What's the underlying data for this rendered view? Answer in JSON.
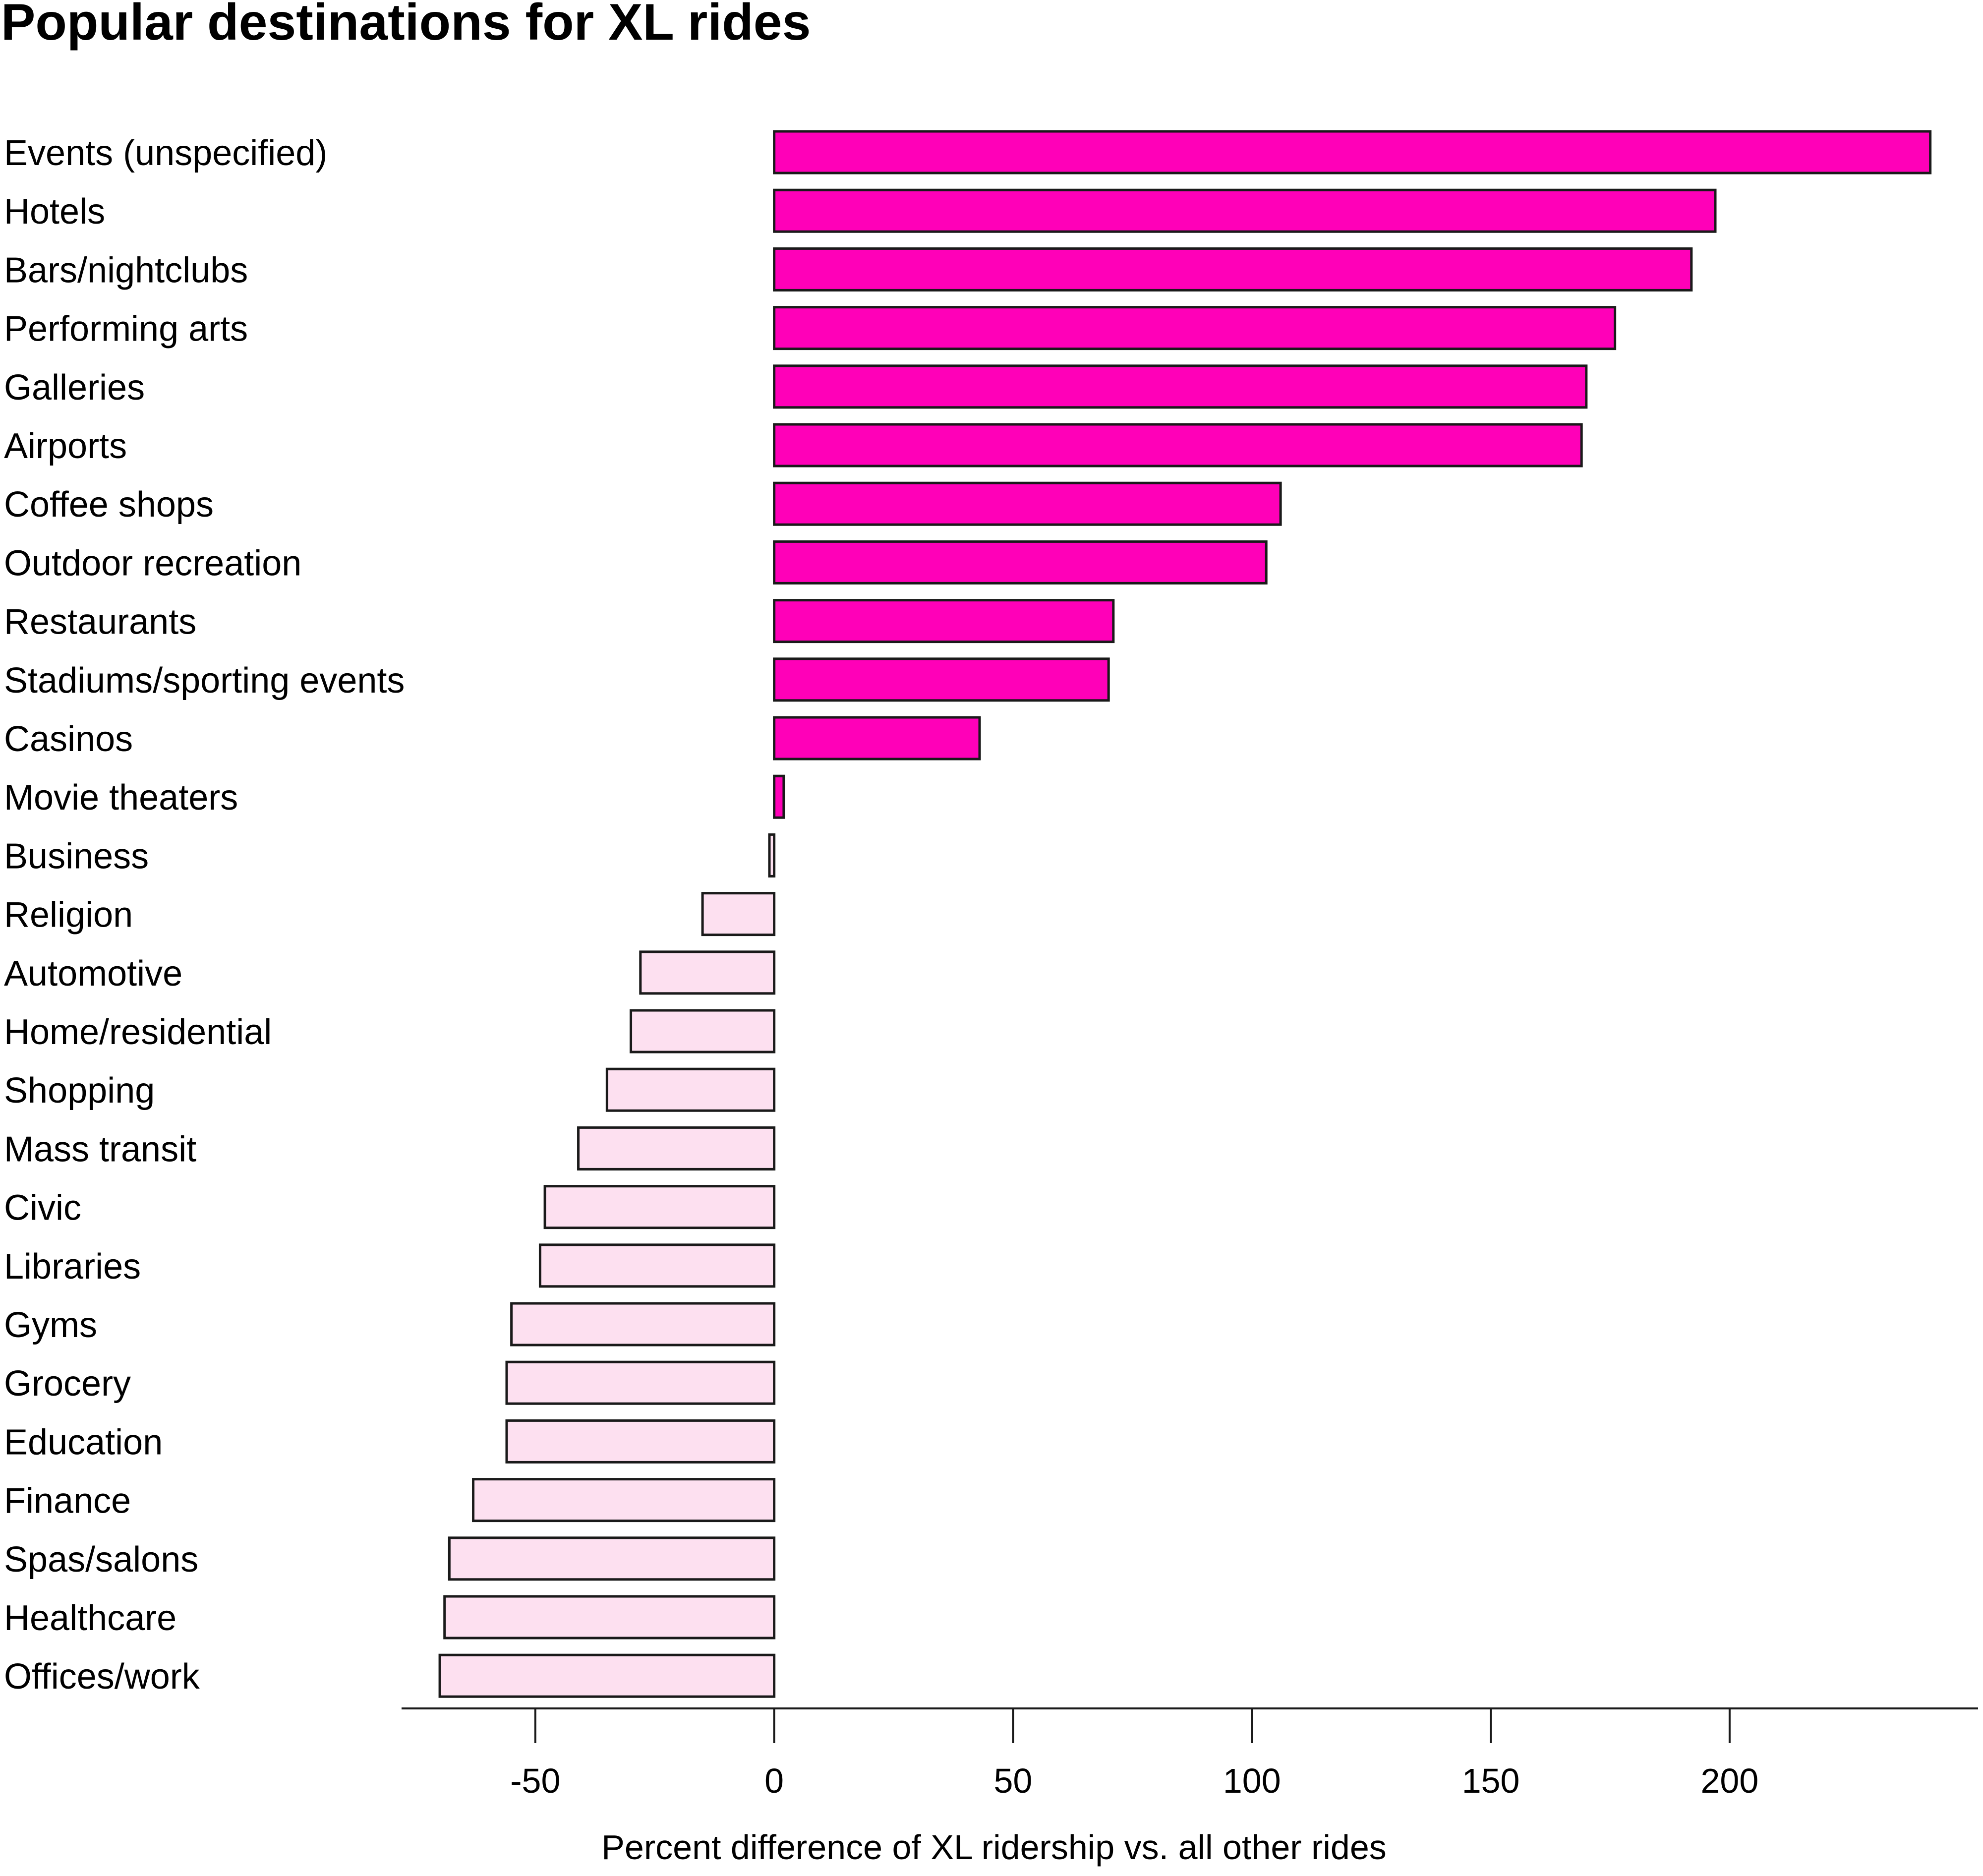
{
  "chart_data": {
    "type": "bar",
    "orientation": "horizontal",
    "title": "Popular destinations for XL rides",
    "xlabel": "Percent difference of XL ridership vs. all other rides",
    "ylabel": "",
    "xlim": [
      -78,
      252
    ],
    "xticks": [
      -50,
      0,
      50,
      100,
      150,
      200
    ],
    "xtick_labels": [
      "-50",
      "0",
      "50",
      "100",
      "150",
      "200"
    ],
    "grid": false,
    "legend": "none",
    "colors": {
      "positive": "#ff00b8",
      "negative": "#fde0f0",
      "stroke": "#1a1a1a"
    },
    "categories": [
      "Events (unspecified)",
      "Hotels",
      "Bars/nightclubs",
      "Performing arts",
      "Galleries",
      "Airports",
      "Coffee shops",
      "Outdoor recreation",
      "Restaurants",
      "Stadiums/sporting events",
      "Casinos",
      "Movie theaters",
      "Business",
      "Religion",
      "Automotive",
      "Home/residential",
      "Shopping",
      "Mass transit",
      "Civic",
      "Libraries",
      "Gyms",
      "Grocery",
      "Education",
      "Finance",
      "Spas/salons",
      "Healthcare",
      "Offices/work"
    ],
    "values": [
      242,
      197,
      192,
      176,
      170,
      169,
      106,
      103,
      71,
      70,
      43,
      2,
      -1,
      -15,
      -28,
      -30,
      -35,
      -41,
      -48,
      -49,
      -55,
      -56,
      -56,
      -63,
      -68,
      -69,
      -70
    ]
  }
}
